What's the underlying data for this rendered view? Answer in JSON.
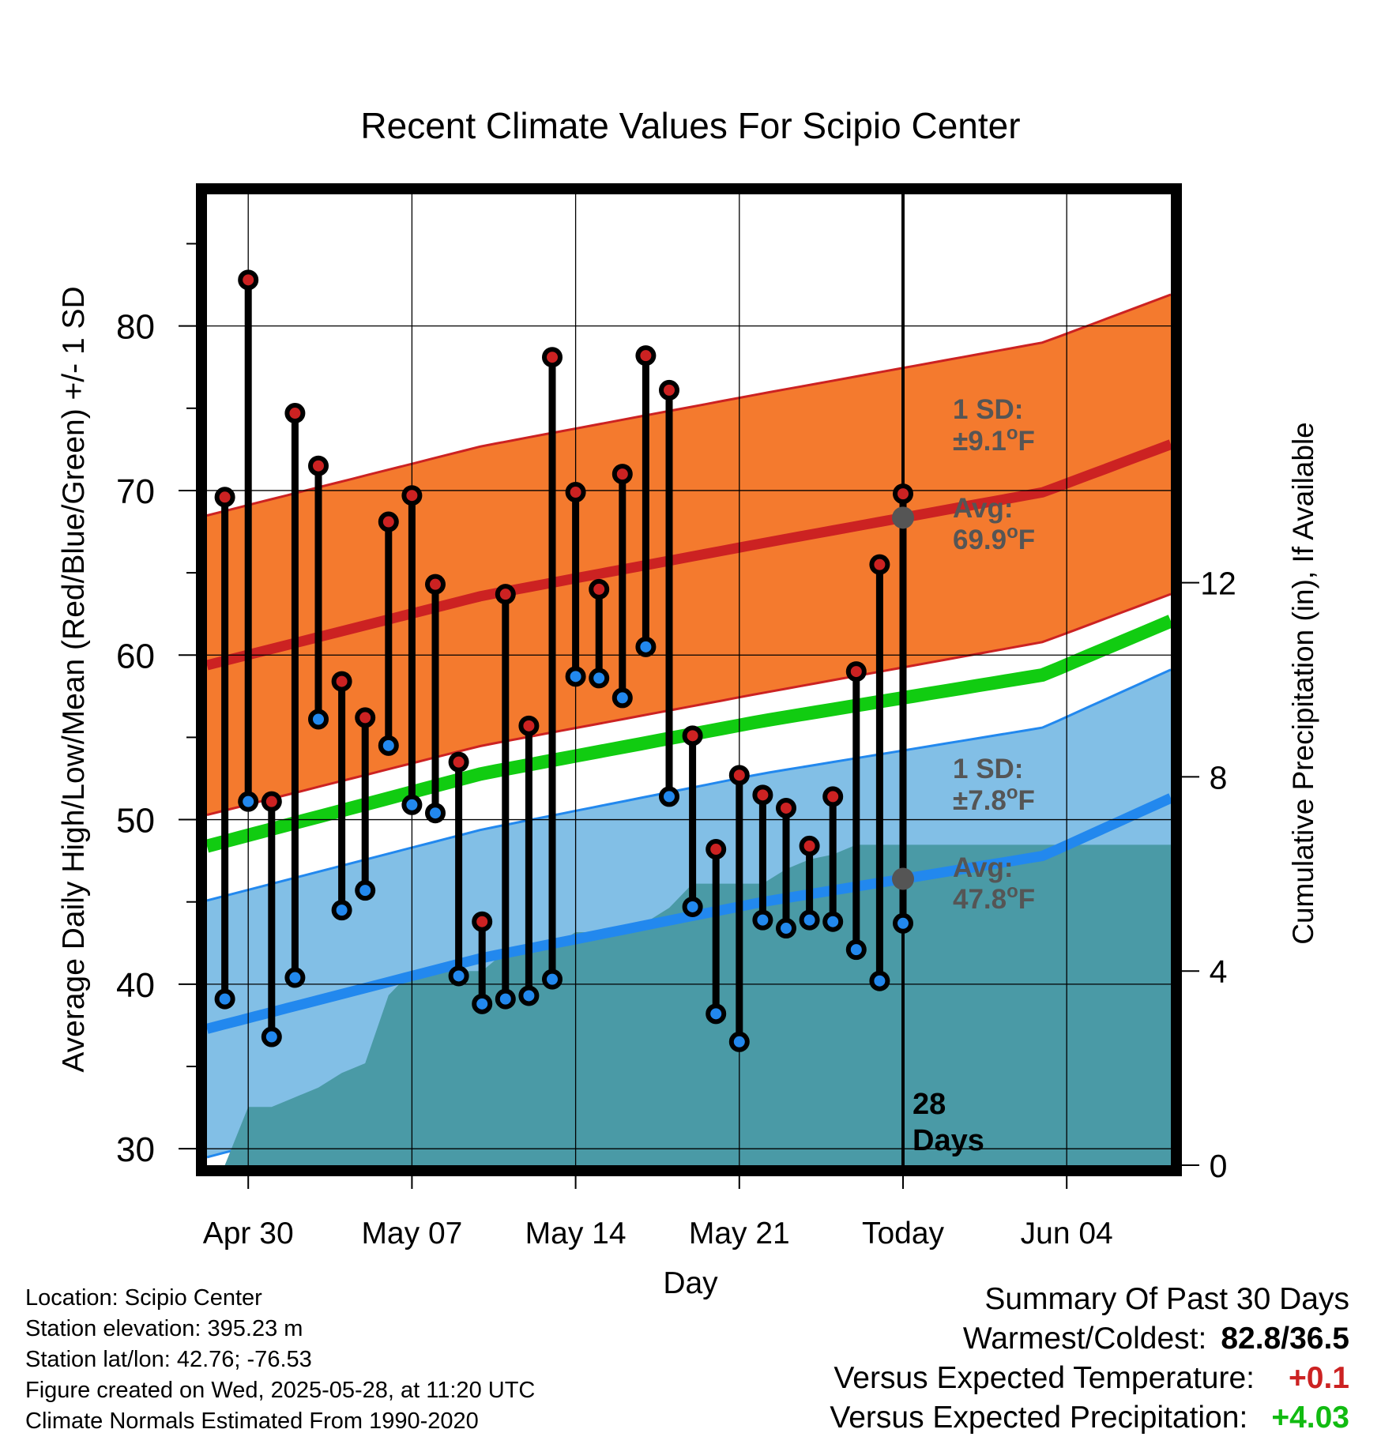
{
  "chart_data": {
    "type": "line",
    "title": "Recent Climate Values For Scipio Center",
    "xlabel": "Day",
    "ylabel": "Average Daily High/Low/Mean (Red/Blue/Green) +/- 1 SD",
    "y2label": "Cumulative Precipitation (in), If Available",
    "ylim": [
      29,
      88
    ],
    "y2lim": [
      0,
      20
    ],
    "x_ticks": [
      "Apr 30",
      "May 07",
      "May 14",
      "May 21",
      "Today",
      "Jun 04"
    ],
    "y_ticks": [
      30,
      40,
      50,
      60,
      70,
      80
    ],
    "y2_ticks": [
      0,
      4,
      8,
      12
    ],
    "today_label": "28 Days",
    "colors": {
      "high": "#cc2222",
      "low": "#2288ee",
      "mean": "#11cc11",
      "high_band": "#f47a2e",
      "low_band": "#82bfe6",
      "precip": "#4a9aa6",
      "marker": "#555555"
    },
    "normals": {
      "days": [
        0,
        12,
        24,
        36,
        40.5
      ],
      "high_avg": [
        59.3,
        63.6,
        66.8,
        69.9,
        72.3
      ],
      "high_sd": 9.1,
      "low_avg": [
        37.2,
        41.6,
        45.0,
        47.8,
        50.7
      ],
      "low_sd": 7.8,
      "mean_avg": [
        48.3,
        52.8,
        56.0,
        58.8,
        61.5
      ]
    },
    "series": [
      {
        "name": "Daily High",
        "days": [
          1,
          2,
          3,
          4,
          5,
          6,
          7,
          8,
          9,
          10,
          11,
          12,
          13,
          14,
          15,
          16,
          17,
          18,
          19,
          20,
          21,
          22,
          23,
          24,
          25,
          26,
          27,
          28,
          29,
          30,
          31
        ],
        "values": [
          69.6,
          82.8,
          51.1,
          74.7,
          71.5,
          58.4,
          56.2,
          68.1,
          69.7,
          64.3,
          53.5,
          43.8,
          63.7,
          55.7,
          78.1,
          69.9,
          64.0,
          71.0,
          78.2,
          76.1,
          55.1,
          48.2,
          52.7,
          51.5,
          50.7,
          48.4,
          51.4,
          59.0,
          65.5,
          69.8,
          null
        ]
      },
      {
        "name": "Daily Low",
        "days": [
          1,
          2,
          3,
          4,
          5,
          6,
          7,
          8,
          9,
          10,
          11,
          12,
          13,
          14,
          15,
          16,
          17,
          18,
          19,
          20,
          21,
          22,
          23,
          24,
          25,
          26,
          27,
          28,
          29,
          30,
          31
        ],
        "values": [
          39.1,
          51.1,
          36.8,
          40.4,
          56.1,
          44.5,
          45.7,
          54.5,
          50.9,
          50.4,
          40.5,
          38.8,
          39.1,
          39.3,
          40.3,
          58.7,
          58.6,
          57.4,
          60.5,
          51.4,
          44.7,
          38.2,
          36.5,
          43.9,
          43.4,
          43.9,
          43.8,
          42.1,
          40.2,
          43.7,
          null
        ]
      },
      {
        "name": "Cumulative Precipitation",
        "days": [
          1,
          2,
          3,
          4,
          5,
          6,
          7,
          8,
          9,
          10,
          11,
          12,
          13,
          14,
          15,
          16,
          17,
          18,
          19,
          20,
          21,
          22,
          23,
          24,
          25,
          26,
          27,
          28,
          29,
          30,
          31,
          32,
          33,
          34,
          35,
          36,
          37,
          38,
          39,
          40,
          41
        ],
        "values": [
          0,
          1.2,
          1.2,
          1.4,
          1.6,
          1.9,
          2.1,
          3.5,
          4.0,
          4.0,
          4.0,
          4.0,
          4.4,
          4.5,
          4.5,
          4.8,
          4.8,
          4.9,
          5.0,
          5.3,
          5.8,
          5.8,
          5.8,
          5.8,
          6.1,
          6.3,
          6.4,
          6.6,
          6.6,
          6.6,
          6.6,
          6.6,
          6.6,
          6.6,
          6.6,
          6.6,
          6.6,
          6.6,
          6.6,
          6.6,
          6.6
        ]
      }
    ],
    "annotations": {
      "high_sd_title": "1 SD:",
      "high_sd_value": "±9.1",
      "high_avg_title": "Avg:",
      "high_avg_value": "69.9",
      "low_sd_title": "1 SD:",
      "low_sd_value": "±7.8",
      "low_avg_title": "Avg:",
      "low_avg_value": "47.8",
      "degree_symbol": "o",
      "unit": "F"
    }
  },
  "footer": {
    "location": "Location: Scipio Center",
    "elevation": "Station elevation: 395.23 m",
    "latlon": "Station lat/lon: 42.76; -76.53",
    "created": "Figure created on Wed, 2025-05-28, at 11:20 UTC",
    "normals": "Climate Normals Estimated From 1990-2020"
  },
  "summary": {
    "title": "Summary Of Past 30 Days",
    "warm_cold_label": "Warmest/Coldest:",
    "warm_cold_value": "82.8/36.5",
    "temp_label": "Versus Expected Temperature:",
    "temp_value": "+0.1",
    "temp_color": "#cc2222",
    "precip_label": "Versus Expected Precipitation:",
    "precip_value": "+4.03",
    "precip_color": "#11bb11"
  }
}
